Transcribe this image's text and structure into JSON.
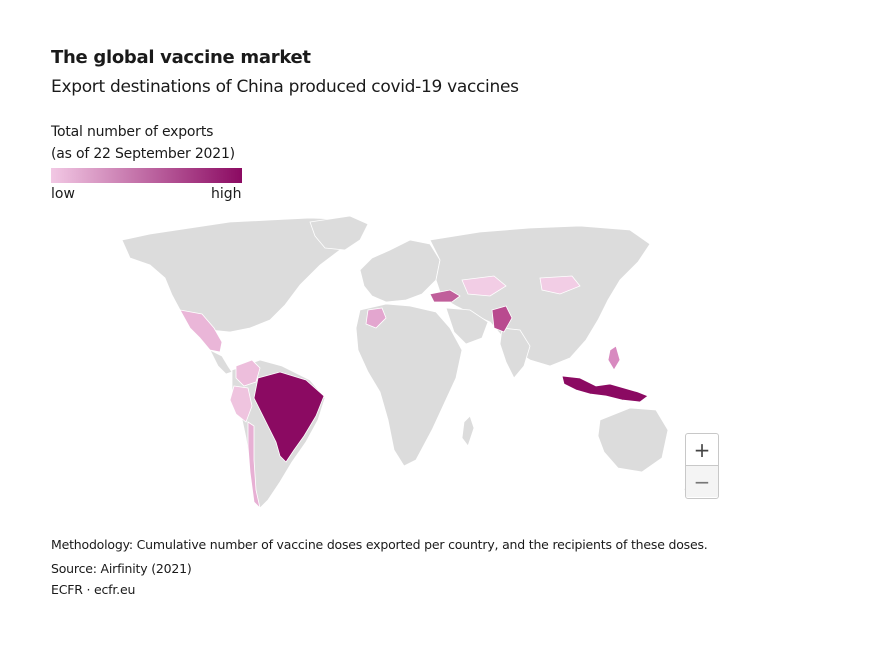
{
  "header": {
    "title": "The global vaccine market",
    "subtitle": "Export destinations of China produced covid-19 vaccines"
  },
  "legend": {
    "title_line1": "Total number of exports",
    "title_line2": "(as of 22 September 2021)",
    "low_label": "low",
    "high_label": "high",
    "color_low": "#f2c8e4",
    "color_high": "#8b0a62"
  },
  "map": {
    "base_color": "#dcdcdc",
    "border_color": "#ffffff",
    "regions": [
      {
        "name": "Brazil",
        "level": "high",
        "color": "#8b0a62"
      },
      {
        "name": "Indonesia",
        "level": "high",
        "color": "#8b0a62"
      },
      {
        "name": "Pakistan",
        "level": "medium",
        "color": "#b94a8f"
      },
      {
        "name": "Turkey",
        "level": "medium",
        "color": "#c05f9b"
      },
      {
        "name": "Mexico",
        "level": "low",
        "color": "#eab6d8"
      },
      {
        "name": "Chile",
        "level": "low",
        "color": "#e7b0d4"
      },
      {
        "name": "Colombia",
        "level": "low",
        "color": "#edbedc"
      },
      {
        "name": "Peru",
        "level": "low",
        "color": "#efc4df"
      },
      {
        "name": "Philippines",
        "level": "low",
        "color": "#d88ac0"
      },
      {
        "name": "Morocco",
        "level": "low",
        "color": "#e3a6cf"
      },
      {
        "name": "Kazakhstan",
        "level": "low",
        "color": "#f2cde5"
      },
      {
        "name": "Mongolia",
        "level": "low",
        "color": "#f2cde5"
      }
    ]
  },
  "zoom": {
    "in_label": "+",
    "out_label": "−"
  },
  "footer": {
    "methodology": "Methodology: Cumulative number of vaccine doses exported per country, and the recipients of these doses.",
    "source": "Source: Airfinity (2021)",
    "credit": "ECFR · ecfr.eu"
  }
}
